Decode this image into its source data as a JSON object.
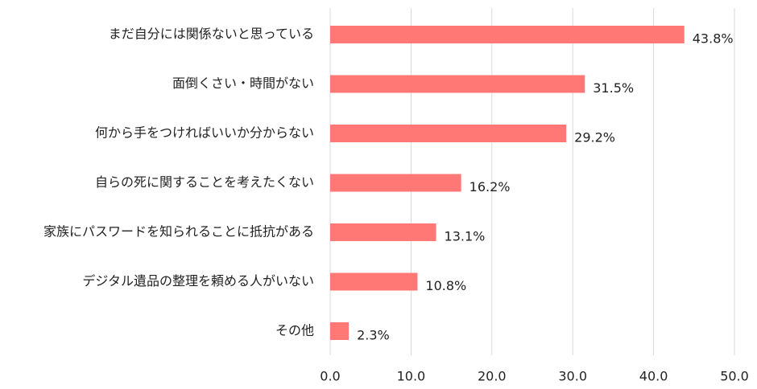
{
  "chart_data": {
    "type": "barh",
    "categories": [
      "まだ自分には関係ないと思っている",
      "面倒くさい・時間がない",
      "何から手をつければいいか分からない",
      "自らの死に関することを考えたくない",
      "家族にパスワードを知られることに抵抗がある",
      "デジタル遺品の整理を頼める人がいない",
      "その他"
    ],
    "values": [
      43.8,
      31.5,
      29.2,
      16.2,
      13.1,
      10.8,
      2.3
    ],
    "value_labels": [
      "43.8%",
      "31.5%",
      "29.2%",
      "16.2%",
      "13.1%",
      "10.8%",
      "2.3%"
    ],
    "color": "#ff7875",
    "xlim": [
      0,
      50
    ],
    "xticks": [
      {
        "value": 0,
        "label": "0.0"
      },
      {
        "value": 10,
        "label": "10.0"
      },
      {
        "value": 20,
        "label": "20.0"
      },
      {
        "value": 30,
        "label": "30.0"
      },
      {
        "value": 40,
        "label": "40.0"
      },
      {
        "value": 50,
        "label": "50.0"
      }
    ],
    "grid": true
  }
}
